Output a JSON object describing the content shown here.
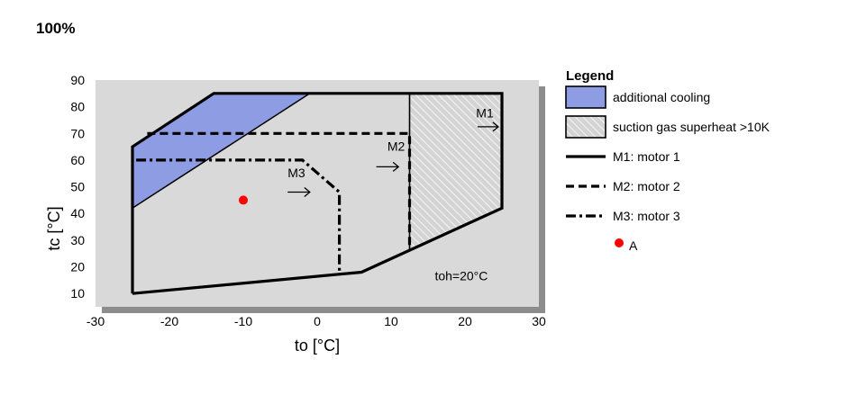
{
  "chart_data": {
    "type": "line",
    "title": "100%",
    "xlabel": "to [°C]",
    "ylabel": "tc [°C]",
    "xlim": [
      -30,
      30
    ],
    "ylim": [
      5,
      90
    ],
    "xticks": [
      -30,
      -20,
      -10,
      0,
      10,
      20,
      30
    ],
    "yticks": [
      10,
      20,
      30,
      40,
      50,
      60,
      70,
      80,
      90
    ],
    "grid": false,
    "legend": {
      "title": "Legend",
      "placement": "right",
      "entries": [
        {
          "key": "additional_cooling",
          "label": "additional cooling"
        },
        {
          "key": "superheat",
          "label": "suction gas superheat >10K"
        },
        {
          "key": "M1",
          "label": "M1: motor 1"
        },
        {
          "key": "M2",
          "label": "M2: motor 2"
        },
        {
          "key": "M3",
          "label": "M3: motor 3"
        },
        {
          "key": "A",
          "label": "A"
        }
      ]
    },
    "regions": [
      {
        "key": "additional_cooling",
        "color": "#8e9de3",
        "points": [
          [
            -25,
            42
          ],
          [
            -25,
            65
          ],
          [
            -14,
            85
          ],
          [
            -1,
            85
          ]
        ]
      },
      {
        "key": "superheat",
        "color": "#d4d4d4",
        "points": [
          [
            12.5,
            85
          ],
          [
            25,
            85
          ],
          [
            25,
            42
          ],
          [
            12.5,
            26
          ]
        ]
      }
    ],
    "series": [
      {
        "key": "M1",
        "style": "solid",
        "points": [
          [
            -25,
            10
          ],
          [
            -25,
            65
          ],
          [
            -14,
            85
          ],
          [
            25,
            85
          ],
          [
            25,
            42
          ],
          [
            6,
            18
          ],
          [
            -25,
            10
          ]
        ]
      },
      {
        "key": "M1_boundary",
        "style": "thin",
        "points": [
          [
            12.5,
            85
          ],
          [
            12.5,
            26
          ]
        ]
      },
      {
        "key": "M2",
        "style": "dash",
        "points": [
          [
            -23,
            70
          ],
          [
            12.5,
            70
          ],
          [
            12.5,
            26
          ]
        ]
      },
      {
        "key": "M3",
        "style": "dashdot",
        "points": [
          [
            -24.5,
            60
          ],
          [
            -2,
            60
          ],
          [
            3,
            48
          ],
          [
            3,
            17.5
          ]
        ]
      }
    ],
    "points": [
      {
        "key": "A",
        "x": -10,
        "y": 45,
        "color": "#ff0000"
      }
    ],
    "annotations": [
      {
        "text": "M1",
        "x": 21.5,
        "y": 76,
        "arrow_x": [
          21.7,
          24.5
        ],
        "arrow_y": 72.5
      },
      {
        "text": "M2",
        "x": 9.5,
        "y": 63.5,
        "arrow_x": [
          8,
          11
        ],
        "arrow_y": 57.5
      },
      {
        "text": "M3",
        "x": -4,
        "y": 53.5,
        "arrow_x": [
          -4,
          -1
        ],
        "arrow_y": 48
      },
      {
        "text": "toh=20°C",
        "x": 19.5,
        "y": 15
      }
    ]
  }
}
